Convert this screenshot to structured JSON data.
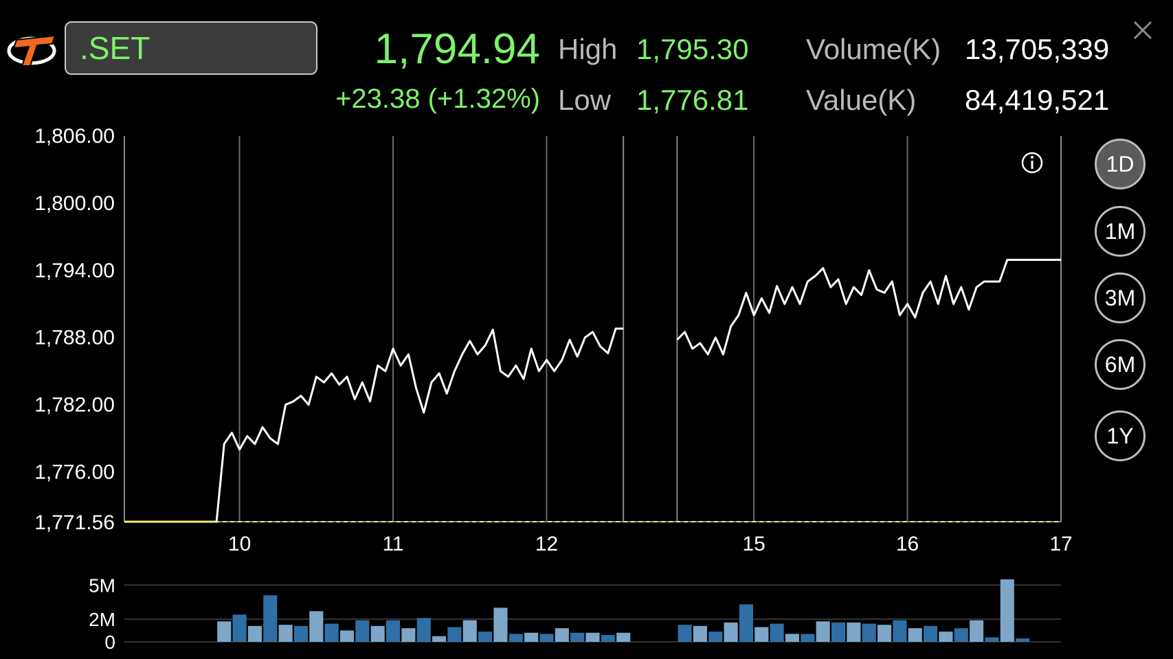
{
  "header": {
    "symbol": ".SET",
    "last": "1,794.94",
    "change": "+23.38 (+1.32%)",
    "high_label": "High",
    "high_value": "1,795.30",
    "low_label": "Low",
    "low_value": "1,776.81",
    "volume_label": "Volume(K)",
    "volume_value": "13,705,339",
    "value_label": "Value(K)",
    "value_value": "84,419,521"
  },
  "periods": [
    "1D",
    "1M",
    "3M",
    "6M",
    "1Y"
  ],
  "active_period": "1D",
  "colors": {
    "up": "#7ef26a",
    "prev_close": "#f3ef7a",
    "bar_dark": "#2f6fa5",
    "bar_light": "#7ea6c8"
  },
  "icons": [
    "brand-logo-icon",
    "close-icon",
    "info-icon"
  ],
  "chart_data": {
    "type": "line",
    "yticks": [
      "1,806.00",
      "1,800.00",
      "1,794.00",
      "1,788.00",
      "1,782.00",
      "1,776.00"
    ],
    "ylim": [
      1771.56,
      1806.0
    ],
    "prev_close_label": "1,771.56",
    "prev_close": 1771.56,
    "x_labels": [
      "10",
      "11",
      "12",
      "15",
      "16",
      "17"
    ],
    "grid": "vertical lines at day boundaries",
    "series": [
      {
        "segments": [
          [
            [
              0,
              1771.56
            ],
            [
              6,
              1771.56
            ],
            [
              6.5,
              1778.5
            ],
            [
              7,
              1779.5
            ],
            [
              7.5,
              1778
            ],
            [
              8,
              1779.2
            ],
            [
              8.5,
              1778.5
            ],
            [
              9,
              1780
            ],
            [
              9.5,
              1779
            ],
            [
              10,
              1778.5
            ],
            [
              10.5,
              1782
            ],
            [
              11,
              1782.3
            ],
            [
              11.5,
              1782.8
            ],
            [
              12,
              1782
            ],
            [
              12.5,
              1784.5
            ],
            [
              13,
              1784
            ],
            [
              13.5,
              1784.8
            ],
            [
              14,
              1783.8
            ],
            [
              14.5,
              1784.5
            ],
            [
              15,
              1782.5
            ],
            [
              15.5,
              1784
            ],
            [
              16,
              1782.3
            ],
            [
              16.5,
              1785.5
            ],
            [
              17,
              1785
            ],
            [
              17.5,
              1787
            ],
            [
              18,
              1785.5
            ],
            [
              18.5,
              1786.5
            ],
            [
              19,
              1783.5
            ],
            [
              19.5,
              1781.3
            ],
            [
              20,
              1784
            ],
            [
              20.5,
              1784.8
            ],
            [
              21,
              1783
            ],
            [
              21.5,
              1785
            ],
            [
              22,
              1786.5
            ],
            [
              22.5,
              1787.7
            ],
            [
              23,
              1786.5
            ],
            [
              23.5,
              1787.3
            ],
            [
              24,
              1788.7
            ],
            [
              24.5,
              1785
            ],
            [
              25,
              1784.5
            ],
            [
              25.5,
              1785.5
            ],
            [
              26,
              1784.3
            ],
            [
              26.5,
              1787
            ],
            [
              27,
              1785
            ],
            [
              27.5,
              1786
            ],
            [
              28,
              1785
            ],
            [
              28.5,
              1786
            ],
            [
              29,
              1787.8
            ],
            [
              29.5,
              1786.3
            ],
            [
              30,
              1788
            ],
            [
              30.5,
              1788.5
            ],
            [
              31,
              1787.2
            ],
            [
              31.5,
              1786.6
            ],
            [
              32,
              1788.8
            ],
            [
              32.5,
              1788.8
            ]
          ],
          [
            [
              36,
              1787.8
            ],
            [
              36.5,
              1788.5
            ],
            [
              37,
              1787
            ],
            [
              37.5,
              1787.5
            ],
            [
              38,
              1786.5
            ],
            [
              38.5,
              1788
            ],
            [
              39,
              1786.5
            ],
            [
              39.5,
              1789
            ],
            [
              40,
              1790
            ],
            [
              40.5,
              1792
            ],
            [
              41,
              1790
            ],
            [
              41.5,
              1791.5
            ],
            [
              42,
              1790.2
            ],
            [
              42.5,
              1792.6
            ],
            [
              43,
              1791
            ],
            [
              43.5,
              1792.5
            ],
            [
              44,
              1791
            ],
            [
              44.5,
              1793
            ],
            [
              45,
              1793.5
            ],
            [
              45.5,
              1794.2
            ],
            [
              46,
              1792.5
            ],
            [
              46.5,
              1793.2
            ],
            [
              47,
              1791
            ],
            [
              47.5,
              1792.5
            ],
            [
              48,
              1791.8
            ],
            [
              48.5,
              1794
            ],
            [
              49,
              1792.3
            ],
            [
              49.5,
              1792
            ],
            [
              50,
              1793
            ],
            [
              50.5,
              1790
            ],
            [
              51,
              1791
            ],
            [
              51.5,
              1789.8
            ],
            [
              52,
              1792
            ],
            [
              52.5,
              1793
            ],
            [
              53,
              1791
            ],
            [
              53.5,
              1793.5
            ],
            [
              54,
              1791
            ],
            [
              54.5,
              1792.5
            ],
            [
              55,
              1790.5
            ],
            [
              55.5,
              1792.5
            ],
            [
              56,
              1793
            ],
            [
              56.5,
              1793
            ],
            [
              57,
              1793
            ],
            [
              57.5,
              1794.94
            ],
            [
              61,
              1794.94
            ]
          ]
        ]
      }
    ],
    "volume": {
      "ylabels": [
        "5M",
        "2M",
        "0"
      ],
      "ylim": [
        0,
        5.5
      ],
      "bars": [
        [
          6.5,
          1.8
        ],
        [
          7.5,
          2.4
        ],
        [
          8.5,
          1.4
        ],
        [
          9.5,
          4.1
        ],
        [
          10.5,
          1.5
        ],
        [
          11.5,
          1.4
        ],
        [
          12.5,
          2.7
        ],
        [
          13.5,
          1.6
        ],
        [
          14.5,
          1.0
        ],
        [
          15.5,
          1.9
        ],
        [
          16.5,
          1.4
        ],
        [
          17.5,
          1.9
        ],
        [
          18.5,
          1.2
        ],
        [
          19.5,
          2.1
        ],
        [
          20.5,
          0.5
        ],
        [
          21.5,
          1.3
        ],
        [
          22.5,
          1.9
        ],
        [
          23.5,
          0.9
        ],
        [
          24.5,
          3.0
        ],
        [
          25.5,
          0.7
        ],
        [
          26.5,
          0.8
        ],
        [
          27.5,
          0.7
        ],
        [
          28.5,
          1.2
        ],
        [
          29.5,
          0.8
        ],
        [
          30.5,
          0.8
        ],
        [
          31.5,
          0.6
        ],
        [
          32.5,
          0.8
        ],
        [
          36.5,
          1.5
        ],
        [
          37.5,
          1.4
        ],
        [
          38.5,
          0.9
        ],
        [
          39.5,
          1.7
        ],
        [
          40.5,
          3.3
        ],
        [
          41.5,
          1.3
        ],
        [
          42.5,
          1.6
        ],
        [
          43.5,
          0.7
        ],
        [
          44.5,
          0.7
        ],
        [
          45.5,
          1.8
        ],
        [
          46.5,
          1.7
        ],
        [
          47.5,
          1.7
        ],
        [
          48.5,
          1.6
        ],
        [
          49.5,
          1.5
        ],
        [
          50.5,
          1.9
        ],
        [
          51.5,
          1.2
        ],
        [
          52.5,
          1.4
        ],
        [
          53.5,
          0.9
        ],
        [
          54.5,
          1.2
        ],
        [
          55.5,
          1.9
        ],
        [
          56.5,
          0.4
        ],
        [
          57.5,
          5.5
        ],
        [
          58.5,
          0.3
        ]
      ]
    }
  }
}
